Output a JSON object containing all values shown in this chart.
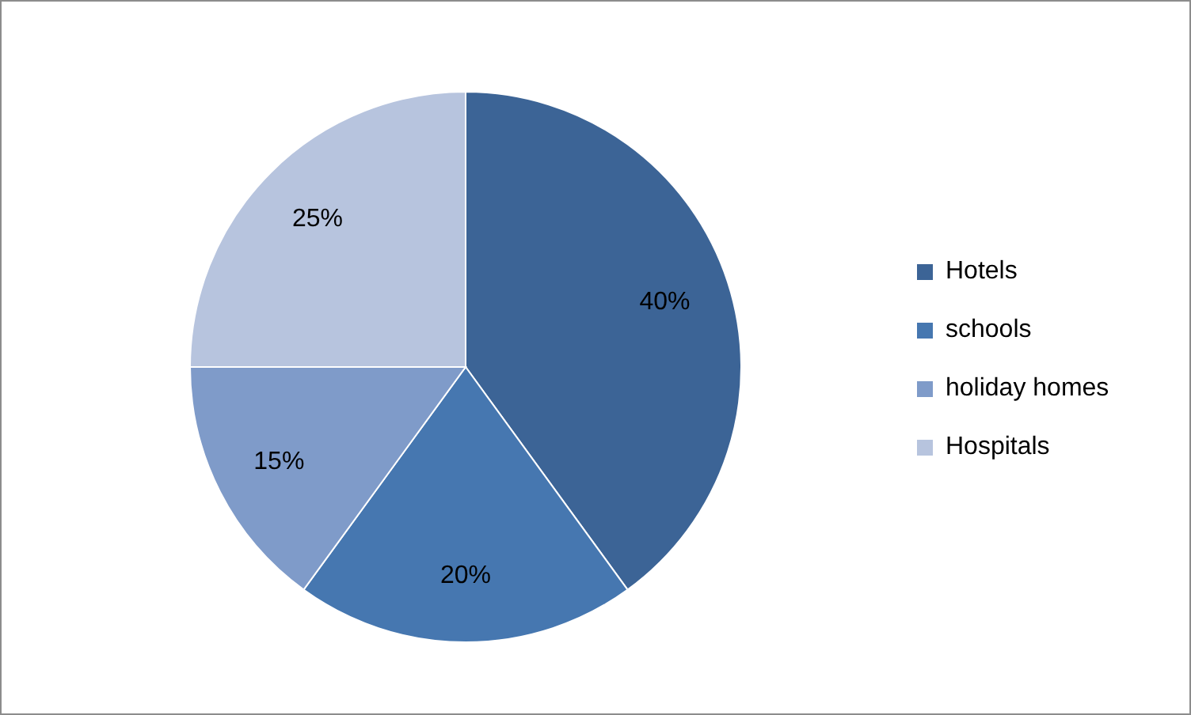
{
  "chart_data": {
    "type": "pie",
    "categories": [
      "Hotels",
      "schools",
      "holiday homes",
      "Hospitals"
    ],
    "values": [
      40,
      20,
      15,
      25
    ],
    "value_labels": [
      "40%",
      "20%",
      "15%",
      "25%"
    ],
    "colors": [
      "#3c6496",
      "#4677b0",
      "#7f9bc9",
      "#b7c4de"
    ],
    "legend": "right"
  }
}
